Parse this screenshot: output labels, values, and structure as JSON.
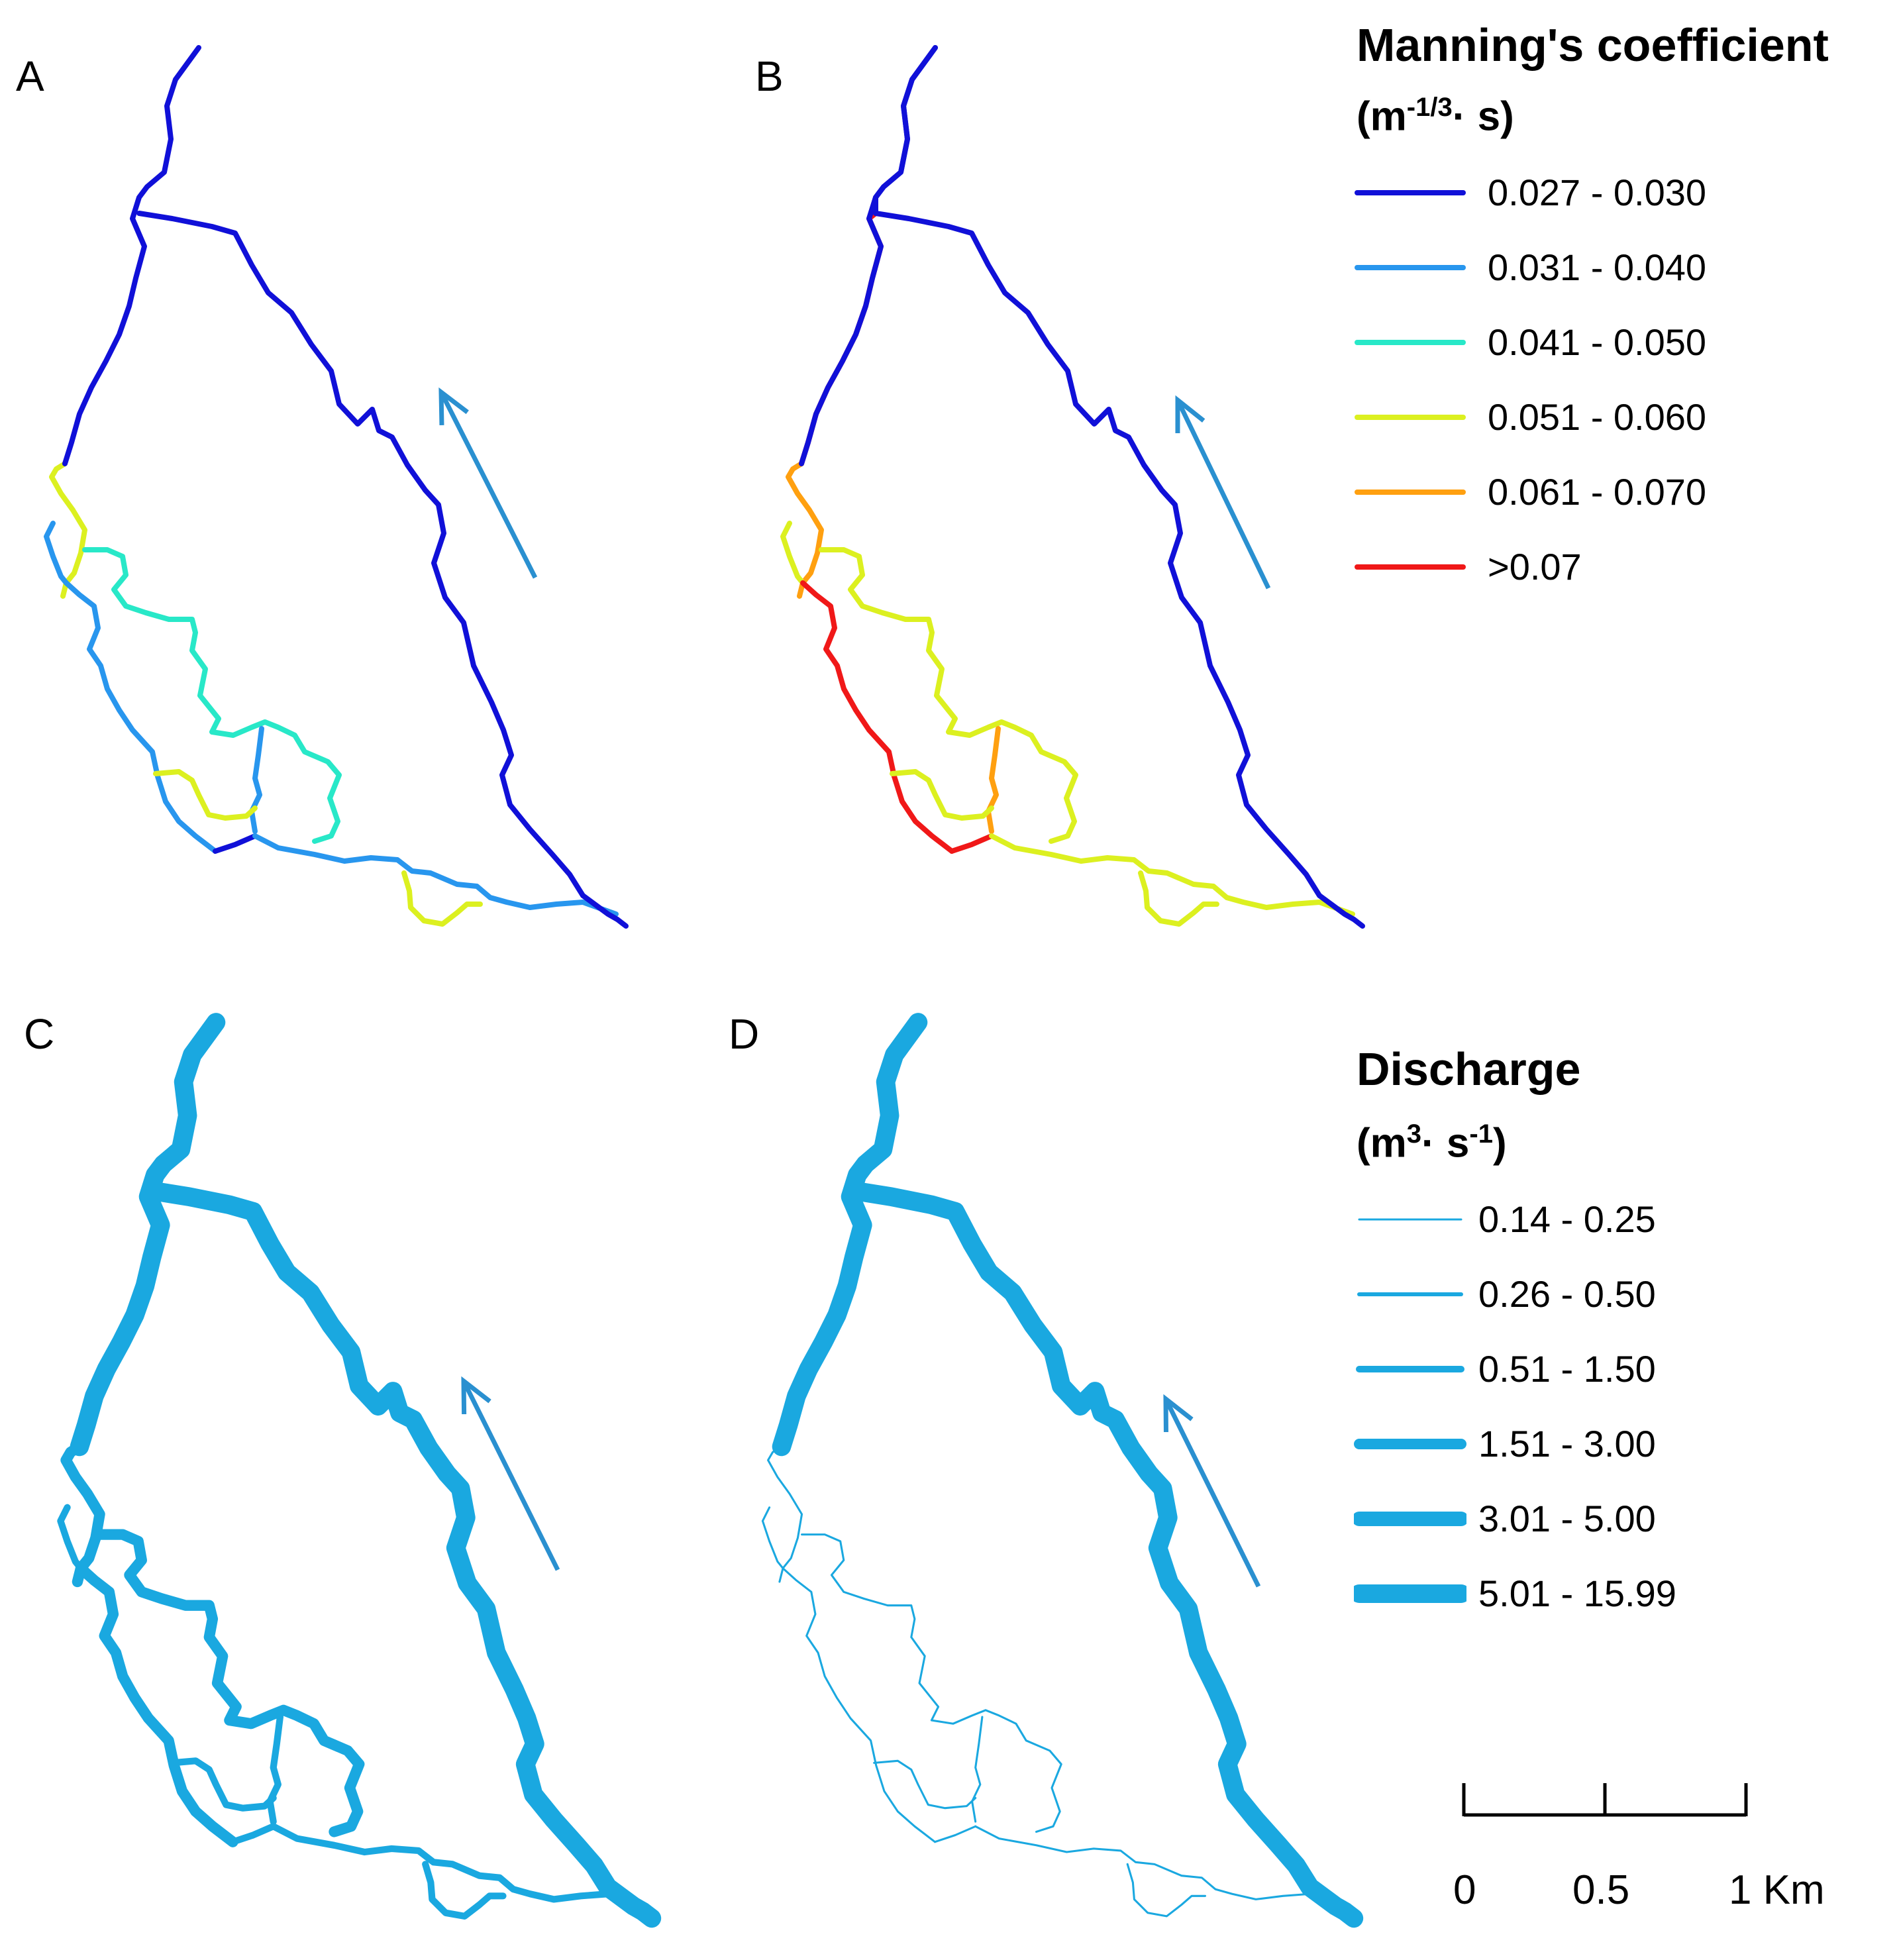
{
  "panels": [
    {
      "label": "A"
    },
    {
      "label": "B"
    },
    {
      "label": "C"
    },
    {
      "label": "D"
    }
  ],
  "legend_manning": {
    "title": "Manning's coefficient",
    "unit_prefix": "(m",
    "unit_exponent": "-1/3",
    "unit_dot": "·",
    "unit_suffix": " s)",
    "classes": [
      {
        "label": "0.027 - 0.030",
        "color": "#1010d8"
      },
      {
        "label": "0.031 - 0.040",
        "color": "#2896ee"
      },
      {
        "label": "0.041 - 0.050",
        "color": "#28e8c8"
      },
      {
        "label": "0.051 - 0.060",
        "color": "#dcf020"
      },
      {
        "label": "0.061 - 0.070",
        "color": "#ffa010"
      },
      {
        "label": ">0.07",
        "color": "#f01818"
      }
    ]
  },
  "legend_discharge": {
    "title": "Discharge",
    "unit_m": "(m",
    "unit_m_exp": "3",
    "unit_dot": "·",
    "unit_s": " s",
    "unit_s_exp": "-1",
    "unit_close": ")",
    "color": "#1aa8e0",
    "classes": [
      {
        "label": "0.14 - 0.25",
        "weight": 1
      },
      {
        "label": "0.26 - 0.50",
        "weight": 2
      },
      {
        "label": "0.51 - 1.50",
        "weight": 3
      },
      {
        "label": "1.51 - 3.00",
        "weight": 4
      },
      {
        "label": "3.01 - 5.00",
        "weight": 5
      },
      {
        "label": "5.01 - 15.99",
        "weight": 6
      }
    ]
  },
  "scale_bar": {
    "labels": [
      "0",
      "0.5",
      "1 Km"
    ]
  },
  "flow_arrow_color": "#2a90d0"
}
